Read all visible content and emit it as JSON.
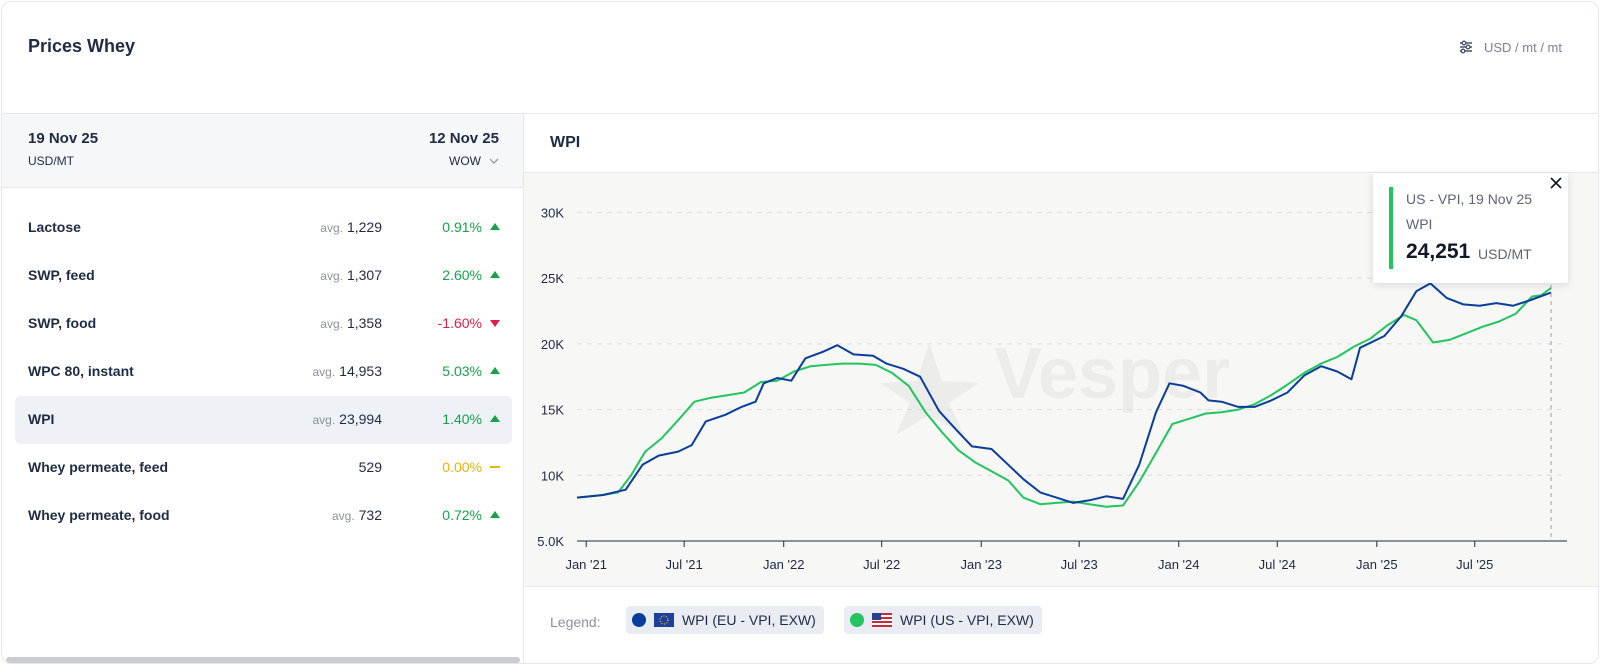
{
  "header": {
    "title": "Prices Whey",
    "units": "USD / mt / mt"
  },
  "table": {
    "date_current": "19 Nov 25",
    "unit": "USD/MT",
    "date_compare": "12 Nov 25",
    "period": "WOW",
    "avg_label": "avg.",
    "rows": [
      {
        "name": "Lactose",
        "avg": true,
        "value": "1,229",
        "change": "0.91%",
        "dir": "up"
      },
      {
        "name": "SWP, feed",
        "avg": true,
        "value": "1,307",
        "change": "2.60%",
        "dir": "up"
      },
      {
        "name": "SWP, food",
        "avg": true,
        "value": "1,358",
        "change": "-1.60%",
        "dir": "down"
      },
      {
        "name": "WPC 80, instant",
        "avg": true,
        "value": "14,953",
        "change": "5.03%",
        "dir": "up"
      },
      {
        "name": "WPI",
        "avg": true,
        "value": "23,994",
        "change": "1.40%",
        "dir": "up",
        "selected": true
      },
      {
        "name": "Whey permeate, feed",
        "avg": false,
        "value": "529",
        "change": "0.00%",
        "dir": "flat"
      },
      {
        "name": "Whey permeate, food",
        "avg": true,
        "value": "732",
        "change": "0.72%",
        "dir": "up"
      }
    ]
  },
  "chart_panel": {
    "title": "WPI"
  },
  "tooltip": {
    "line1": "US - VPI, 19 Nov 25",
    "line2": "WPI",
    "value": "24,251",
    "unit": "USD/MT"
  },
  "legend": {
    "label": "Legend:",
    "items": [
      {
        "name": "WPI (EU - VPI, EXW)",
        "color": "#0a3d9c",
        "flag": "eu-flag-icon"
      },
      {
        "name": "WPI (US - VPI, EXW)",
        "color": "#22c55e",
        "flag": "us-flag-icon"
      }
    ]
  },
  "watermark": "Vesper",
  "colors": {
    "eu": "#0a3d9c",
    "us": "#22c55e",
    "positive": "#16a34a",
    "negative": "#e11d48",
    "neutral": "#eab308"
  },
  "chart_data": {
    "type": "line",
    "title": "WPI",
    "x_range": [
      "2020-12-15",
      "2025-11-30"
    ],
    "ylim": [
      5000,
      33000
    ],
    "yticks": [
      5000,
      10000,
      15000,
      20000,
      25000,
      30000
    ],
    "ytick_labels": [
      "5.0K",
      "10K",
      "15K",
      "20K",
      "25K",
      "30K"
    ],
    "xticks": [
      "2021-01-01",
      "2021-07-01",
      "2022-01-01",
      "2022-07-01",
      "2023-01-01",
      "2023-07-01",
      "2024-01-01",
      "2024-07-01",
      "2025-01-01",
      "2025-07-01"
    ],
    "xtick_labels": [
      "Jan '21",
      "Jul '21",
      "Jan '22",
      "Jul '22",
      "Jan '23",
      "Jul '23",
      "Jan '24",
      "Jul '24",
      "Jan '25",
      "Jul '25"
    ],
    "grid": "horizontal dashed",
    "series": [
      {
        "name": "WPI (EU - VPI, EXW)",
        "color": "#0a3d9c",
        "points": [
          [
            "2020-12-15",
            8300
          ],
          [
            "2021-02-01",
            8500
          ],
          [
            "2021-03-15",
            8900
          ],
          [
            "2021-04-15",
            10800
          ],
          [
            "2021-05-15",
            11500
          ],
          [
            "2021-06-20",
            11800
          ],
          [
            "2021-07-15",
            12300
          ],
          [
            "2021-08-10",
            14100
          ],
          [
            "2021-09-15",
            14600
          ],
          [
            "2021-10-15",
            15200
          ],
          [
            "2021-11-10",
            15600
          ],
          [
            "2021-11-25",
            17000
          ],
          [
            "2021-12-20",
            17400
          ],
          [
            "2022-01-15",
            17200
          ],
          [
            "2022-02-10",
            18900
          ],
          [
            "2022-03-15",
            19400
          ],
          [
            "2022-04-10",
            19900
          ],
          [
            "2022-05-10",
            19200
          ],
          [
            "2022-06-15",
            19100
          ],
          [
            "2022-07-10",
            18500
          ],
          [
            "2022-08-10",
            18100
          ],
          [
            "2022-09-10",
            17500
          ],
          [
            "2022-10-15",
            14900
          ],
          [
            "2022-11-15",
            13500
          ],
          [
            "2022-12-15",
            12200
          ],
          [
            "2023-01-20",
            12000
          ],
          [
            "2023-02-20",
            10800
          ],
          [
            "2023-03-20",
            9700
          ],
          [
            "2023-04-20",
            8700
          ],
          [
            "2023-05-20",
            8300
          ],
          [
            "2023-06-20",
            7900
          ],
          [
            "2023-07-20",
            8100
          ],
          [
            "2023-08-20",
            8400
          ],
          [
            "2023-09-20",
            8200
          ],
          [
            "2023-10-20",
            10800
          ],
          [
            "2023-11-20",
            14800
          ],
          [
            "2023-12-15",
            17000
          ],
          [
            "2024-01-10",
            16800
          ],
          [
            "2024-02-10",
            16300
          ],
          [
            "2024-02-25",
            15700
          ],
          [
            "2024-03-20",
            15600
          ],
          [
            "2024-04-20",
            15200
          ],
          [
            "2024-05-20",
            15200
          ],
          [
            "2024-06-20",
            15700
          ],
          [
            "2024-07-20",
            16300
          ],
          [
            "2024-08-20",
            17600
          ],
          [
            "2024-09-20",
            18300
          ],
          [
            "2024-10-20",
            17900
          ],
          [
            "2024-11-15",
            17300
          ],
          [
            "2024-12-01",
            19700
          ],
          [
            "2025-01-15",
            20600
          ],
          [
            "2025-02-15",
            22100
          ],
          [
            "2025-03-15",
            24000
          ],
          [
            "2025-04-10",
            24600
          ],
          [
            "2025-05-10",
            23500
          ],
          [
            "2025-06-10",
            23000
          ],
          [
            "2025-07-10",
            22900
          ],
          [
            "2025-08-10",
            23100
          ],
          [
            "2025-09-10",
            22900
          ],
          [
            "2025-10-10",
            23300
          ],
          [
            "2025-11-19",
            23900
          ]
        ]
      },
      {
        "name": "WPI (US - VPI, EXW)",
        "color": "#22c55e",
        "points": [
          [
            "2020-12-15",
            8300
          ],
          [
            "2021-02-01",
            8500
          ],
          [
            "2021-03-01",
            8700
          ],
          [
            "2021-03-25",
            10000
          ],
          [
            "2021-04-20",
            11800
          ],
          [
            "2021-05-20",
            12800
          ],
          [
            "2021-06-20",
            14200
          ],
          [
            "2021-07-20",
            15600
          ],
          [
            "2021-08-20",
            15900
          ],
          [
            "2021-09-20",
            16100
          ],
          [
            "2021-10-20",
            16300
          ],
          [
            "2021-11-20",
            17100
          ],
          [
            "2021-12-20",
            17200
          ],
          [
            "2022-01-20",
            17900
          ],
          [
            "2022-02-20",
            18300
          ],
          [
            "2022-03-20",
            18400
          ],
          [
            "2022-04-20",
            18500
          ],
          [
            "2022-05-20",
            18500
          ],
          [
            "2022-06-20",
            18400
          ],
          [
            "2022-07-20",
            17800
          ],
          [
            "2022-08-20",
            16800
          ],
          [
            "2022-09-20",
            14800
          ],
          [
            "2022-10-20",
            13300
          ],
          [
            "2022-11-20",
            11900
          ],
          [
            "2022-12-20",
            11000
          ],
          [
            "2023-01-20",
            10300
          ],
          [
            "2023-02-20",
            9600
          ],
          [
            "2023-03-20",
            8300
          ],
          [
            "2023-04-20",
            7800
          ],
          [
            "2023-05-20",
            7900
          ],
          [
            "2023-06-20",
            8000
          ],
          [
            "2023-07-20",
            7800
          ],
          [
            "2023-08-20",
            7600
          ],
          [
            "2023-09-20",
            7700
          ],
          [
            "2023-10-20",
            9500
          ],
          [
            "2023-11-20",
            11700
          ],
          [
            "2023-12-20",
            13900
          ],
          [
            "2024-01-20",
            14300
          ],
          [
            "2024-02-20",
            14700
          ],
          [
            "2024-03-20",
            14800
          ],
          [
            "2024-04-20",
            15000
          ],
          [
            "2024-05-20",
            15400
          ],
          [
            "2024-06-20",
            16100
          ],
          [
            "2024-07-20",
            16900
          ],
          [
            "2024-08-20",
            17800
          ],
          [
            "2024-09-20",
            18500
          ],
          [
            "2024-10-20",
            19000
          ],
          [
            "2024-11-20",
            19800
          ],
          [
            "2024-12-20",
            20400
          ],
          [
            "2025-01-20",
            21400
          ],
          [
            "2025-02-20",
            22200
          ],
          [
            "2025-03-15",
            21800
          ],
          [
            "2025-04-15",
            20100
          ],
          [
            "2025-05-15",
            20300
          ],
          [
            "2025-06-15",
            20800
          ],
          [
            "2025-07-15",
            21300
          ],
          [
            "2025-08-15",
            21700
          ],
          [
            "2025-09-15",
            22300
          ],
          [
            "2025-10-15",
            23600
          ],
          [
            "2025-11-01",
            23700
          ],
          [
            "2025-11-19",
            24251
          ]
        ]
      }
    ]
  }
}
